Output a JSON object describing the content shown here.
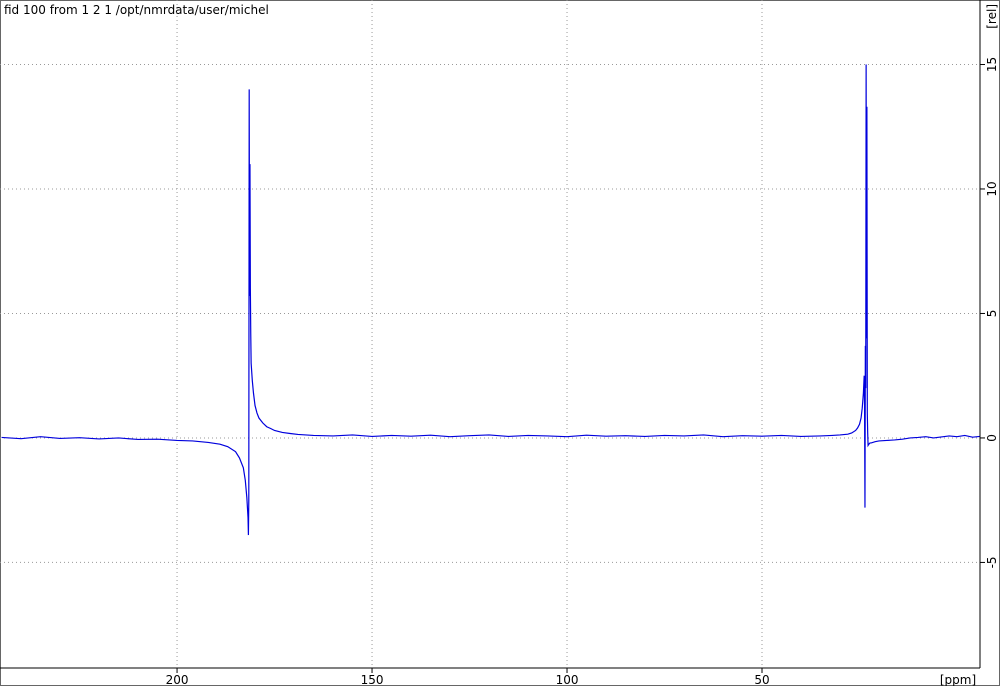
{
  "chart_data": {
    "type": "line",
    "title": "fid 100 from 1  2  1  /opt/nmrdata/user/michel",
    "x_label": "[ppm]",
    "y_label": "[rel]",
    "color": "#0000dd",
    "x": [
      245,
      240,
      235,
      230,
      225,
      220,
      215,
      210,
      205,
      200,
      196,
      192,
      189,
      187,
      185,
      184,
      183,
      182.5,
      182.1,
      181.8,
      181.7,
      181.6,
      181.5,
      181.4,
      181.3,
      181.2,
      181.1,
      181.0,
      180.7,
      180.4,
      180,
      179.5,
      179,
      178,
      177,
      176,
      175,
      173,
      171,
      169,
      167,
      165,
      160,
      155,
      150,
      145,
      140,
      135,
      130,
      125,
      120,
      115,
      110,
      105,
      100,
      95,
      90,
      85,
      80,
      75,
      70,
      65,
      60,
      55,
      50,
      45,
      40,
      35,
      32,
      30,
      28,
      27,
      26,
      25.5,
      25,
      24.6,
      24.3,
      24,
      23.8,
      23.7,
      23.6,
      23.5,
      23.4,
      23.3,
      23.2,
      23.1,
      23.0,
      22.9,
      22.8,
      22.6,
      22.3,
      22,
      21,
      20,
      18,
      16,
      14,
      12,
      10,
      8,
      6,
      4,
      2,
      0,
      -2,
      -4,
      -5.8
    ],
    "values": [
      0.02,
      -0.03,
      0.05,
      -0.02,
      0.01,
      -0.04,
      0.0,
      -0.06,
      -0.05,
      -0.1,
      -0.12,
      -0.18,
      -0.25,
      -0.35,
      -0.55,
      -0.8,
      -1.2,
      -1.7,
      -2.4,
      -3.2,
      -3.9,
      -2.5,
      14.0,
      5.7,
      11.0,
      6.0,
      4.2,
      3.0,
      2.3,
      1.8,
      1.3,
      1.0,
      0.8,
      0.6,
      0.45,
      0.38,
      0.3,
      0.22,
      0.18,
      0.14,
      0.12,
      0.1,
      0.08,
      0.12,
      0.06,
      0.1,
      0.07,
      0.11,
      0.05,
      0.09,
      0.12,
      0.06,
      0.1,
      0.08,
      0.05,
      0.11,
      0.07,
      0.09,
      0.06,
      0.1,
      0.08,
      0.12,
      0.05,
      0.09,
      0.07,
      0.1,
      0.06,
      0.08,
      0.1,
      0.12,
      0.15,
      0.2,
      0.3,
      0.4,
      0.55,
      0.8,
      1.2,
      1.8,
      2.5,
      1.3,
      -2.8,
      3.7,
      2.0,
      15.0,
      4.0,
      13.3,
      1.0,
      0.2,
      -0.3,
      -0.25,
      -0.2,
      -0.2,
      -0.15,
      -0.12,
      -0.1,
      -0.08,
      -0.05,
      0.0,
      0.02,
      0.05,
      0.0,
      0.04,
      0.08,
      0.05,
      0.1,
      0.03,
      0.06
    ],
    "xlim": [
      245.4,
      -5.9
    ],
    "xticks": [
      200,
      150,
      100,
      50
    ],
    "ylim": [
      -9.24,
      17.59
    ],
    "yticks": [
      -5,
      0,
      5,
      10,
      15
    ],
    "grid": true
  }
}
